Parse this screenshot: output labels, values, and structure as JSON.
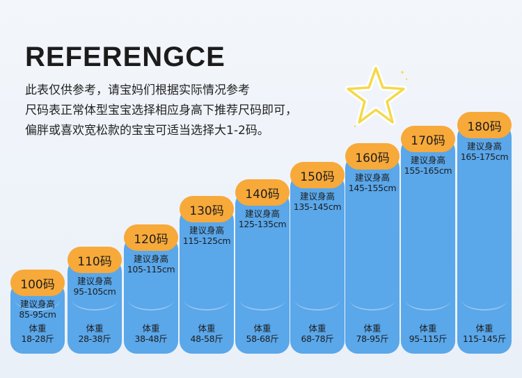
{
  "title": "REFERENGCE",
  "description": [
    "此表仅供参考，请宝妈们根据实际情况参考",
    "尺码表正常体型宝宝选择相应身高下推荐尺码即可，",
    "偏胖或喜欢宽松款的宝宝可适当选择大1-2码。"
  ],
  "height_label": "建议身高",
  "weight_label": "体重",
  "colors": {
    "bar": "#5aa7ea",
    "size_pill": "#f7a93a",
    "star": "#f5d84a"
  },
  "sizes": [
    {
      "size": "100码",
      "height": "85-95cm",
      "weight": "18-28斤"
    },
    {
      "size": "110码",
      "height": "95-105cm",
      "weight": "28-38斤"
    },
    {
      "size": "120码",
      "height": "105-115cm",
      "weight": "38-48斤"
    },
    {
      "size": "130码",
      "height": "115-125cm",
      "weight": "48-58斤"
    },
    {
      "size": "140码",
      "height": "125-135cm",
      "weight": "58-68斤"
    },
    {
      "size": "150码",
      "height": "135-145cm",
      "weight": "68-78斤"
    },
    {
      "size": "160码",
      "height": "145-155cm",
      "weight": "78-95斤"
    },
    {
      "size": "170码",
      "height": "155-165cm",
      "weight": "95-115斤"
    },
    {
      "size": "180码",
      "height": "165-175cm",
      "weight": "115-145斤"
    }
  ]
}
